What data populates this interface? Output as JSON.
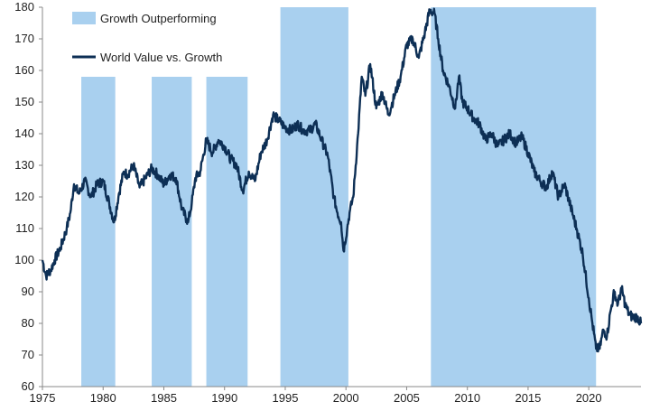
{
  "chart_data": {
    "type": "line",
    "xlim": [
      1975,
      2024.3
    ],
    "ylim": [
      60,
      180
    ],
    "x_ticks": [
      "1975",
      "1980",
      "1985",
      "1990",
      "1995",
      "2000",
      "2005",
      "2010",
      "2015",
      "2020"
    ],
    "y_ticks": [
      "60",
      "70",
      "80",
      "90",
      "100",
      "110",
      "120",
      "130",
      "140",
      "150",
      "160",
      "170",
      "180"
    ],
    "legend": {
      "position": "top-left",
      "shade_label": "Growth Outperforming",
      "line_label": "World Value vs. Growth"
    },
    "colors": {
      "shade": "#a9d0ef",
      "line": "#0d2f55"
    },
    "shaded_periods": [
      {
        "start": 1978.2,
        "end": 1981.0,
        "top": 158
      },
      {
        "start": 1984.0,
        "end": 1987.3,
        "top": 158
      },
      {
        "start": 1988.5,
        "end": 1991.9,
        "top": 158
      },
      {
        "start": 1994.6,
        "end": 2000.2,
        "top": 180
      },
      {
        "start": 2007.0,
        "end": 2020.6,
        "top": 180
      }
    ],
    "series": [
      {
        "name": "World Value vs. Growth",
        "x": [
          1975.0,
          1975.3,
          1975.7,
          1976.0,
          1976.5,
          1977.0,
          1977.3,
          1977.6,
          1978.0,
          1978.5,
          1979.0,
          1979.5,
          1980.0,
          1980.5,
          1980.9,
          1981.3,
          1981.7,
          1982.0,
          1982.5,
          1983.0,
          1983.5,
          1984.0,
          1984.5,
          1985.0,
          1985.5,
          1986.0,
          1986.5,
          1987.0,
          1987.3,
          1987.6,
          1988.0,
          1988.5,
          1989.0,
          1989.5,
          1990.0,
          1990.5,
          1991.0,
          1991.5,
          1992.0,
          1992.5,
          1993.0,
          1993.5,
          1994.0,
          1994.5,
          1995.0,
          1995.5,
          1996.0,
          1996.5,
          1997.0,
          1997.5,
          1998.0,
          1998.5,
          1999.0,
          1999.3,
          1999.6,
          1999.8,
          2000.1,
          2000.3,
          2000.6,
          2001.0,
          2001.3,
          2001.6,
          2002.0,
          2002.5,
          2003.0,
          2003.5,
          2004.0,
          2004.5,
          2005.0,
          2005.5,
          2006.0,
          2006.5,
          2006.9,
          2007.3,
          2007.6,
          2008.0,
          2008.5,
          2009.0,
          2009.3,
          2009.6,
          2010.0,
          2010.5,
          2011.0,
          2011.5,
          2012.0,
          2012.5,
          2013.0,
          2013.5,
          2014.0,
          2014.5,
          2015.0,
          2015.5,
          2016.0,
          2016.5,
          2017.0,
          2017.5,
          2018.0,
          2018.5,
          2019.0,
          2019.5,
          2020.0,
          2020.3,
          2020.6,
          2020.9,
          2021.2,
          2021.5,
          2021.8,
          2022.1,
          2022.4,
          2022.7,
          2023.0,
          2023.3,
          2023.6,
          2024.0,
          2024.3
        ],
        "values": [
          100,
          95,
          97,
          100,
          104,
          110,
          115,
          124,
          121,
          125,
          120,
          124,
          125,
          118,
          112,
          121,
          128,
          127,
          130,
          123,
          126,
          129,
          127,
          124,
          127,
          126,
          116,
          112,
          118,
          126,
          128,
          138,
          134,
          138,
          136,
          132,
          130,
          122,
          128,
          125,
          134,
          138,
          146,
          144,
          142,
          141,
          143,
          141,
          141,
          143,
          138,
          133,
          120,
          115,
          112,
          103,
          110,
          115,
          120,
          140,
          158,
          152,
          162,
          148,
          153,
          146,
          152,
          158,
          168,
          170,
          164,
          172,
          179,
          178,
          170,
          160,
          155,
          148,
          158,
          150,
          148,
          145,
          143,
          138,
          140,
          136,
          138,
          140,
          137,
          139,
          134,
          128,
          125,
          123,
          128,
          120,
          124,
          117,
          110,
          102,
          88,
          80,
          72,
          72,
          78,
          76,
          84,
          90,
          86,
          91,
          86,
          83,
          82,
          82,
          80
        ]
      }
    ]
  }
}
